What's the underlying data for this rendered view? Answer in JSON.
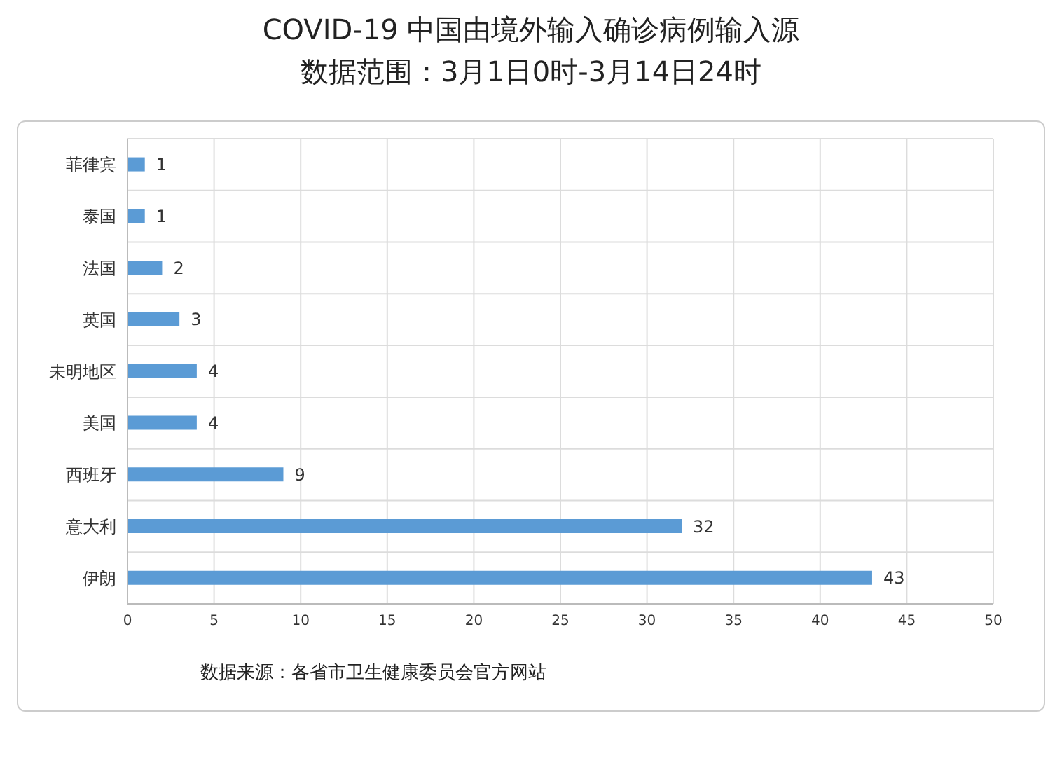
{
  "chart_data": {
    "type": "bar",
    "orientation": "horizontal",
    "title": "COVID-19 中国由境外输入确诊病例输入源",
    "subtitle": "数据范围：3月1日0时-3月14日24时",
    "categories": [
      "菲律宾",
      "泰国",
      "法国",
      "英国",
      "未明地区",
      "美国",
      "西班牙",
      "意大利",
      "伊朗"
    ],
    "values": [
      1,
      1,
      2,
      3,
      4,
      4,
      9,
      32,
      43
    ],
    "color": "#5b9bd5",
    "data_labels": true,
    "xlim": [
      0,
      50
    ],
    "xticks": [
      0,
      5,
      10,
      15,
      20,
      25,
      30,
      35,
      40,
      45,
      50
    ],
    "grid": true,
    "annotations": [
      "数据来源：各省市卫生健康委员会官方网站"
    ]
  }
}
